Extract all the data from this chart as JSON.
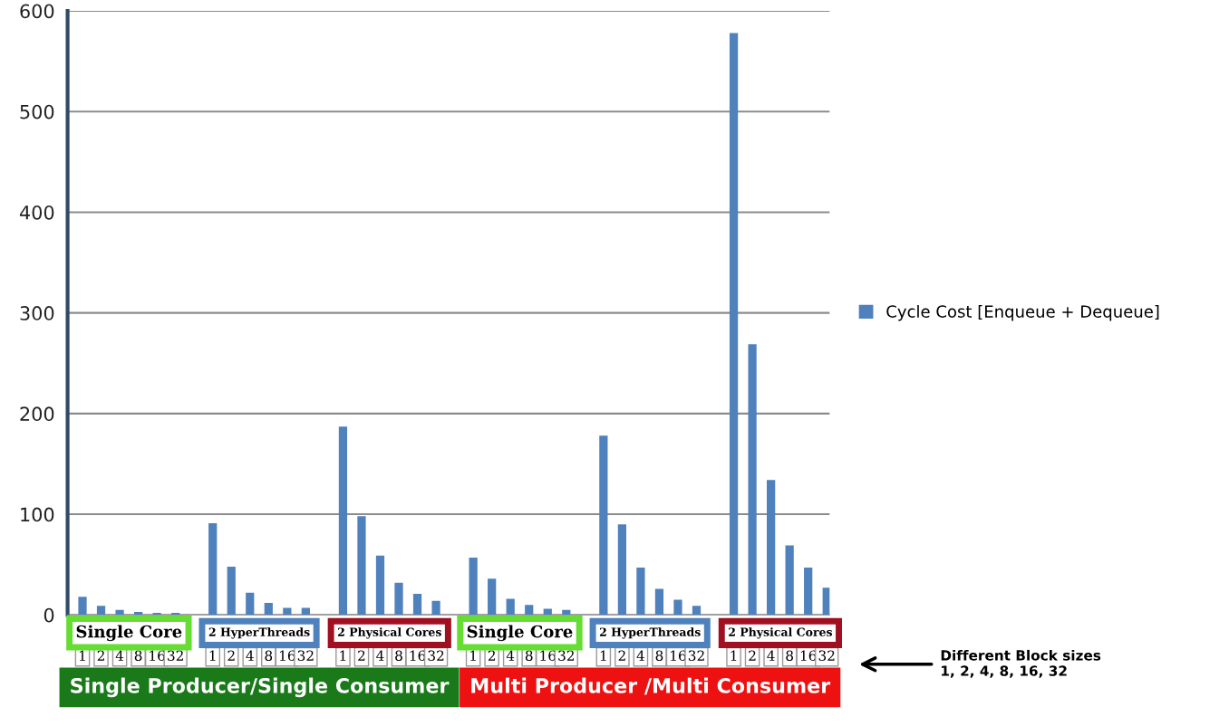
{
  "chart_data": {
    "type": "bar",
    "categories": [
      "1",
      "2",
      "4",
      "8",
      "16",
      "32",
      null,
      "1",
      "2",
      "4",
      "8",
      "16",
      "32",
      null,
      "1",
      "2",
      "4",
      "8",
      "16",
      "32",
      null,
      "1",
      "2",
      "4",
      "8",
      "16",
      "32",
      null,
      "1",
      "2",
      "4",
      "8",
      "16",
      "32",
      null,
      "1",
      "2",
      "4",
      "8",
      "16",
      "32"
    ],
    "series": [
      {
        "name": "Cycle Cost [Enqueue + Dequeue]",
        "color": "#4f81bd",
        "values": [
          18,
          9,
          5,
          3,
          2,
          2,
          null,
          91,
          48,
          22,
          12,
          7,
          7,
          null,
          187,
          98,
          59,
          32,
          21,
          14,
          null,
          57,
          36,
          16,
          10,
          6,
          5,
          null,
          178,
          90,
          47,
          26,
          15,
          9,
          null,
          578,
          269,
          134,
          69,
          47,
          27
        ]
      }
    ],
    "ylim": [
      0,
      600
    ],
    "yticks": [
      0,
      100,
      200,
      300,
      400,
      500,
      600
    ],
    "grid": "y",
    "legend": "right",
    "annotations": [
      "Single Core",
      "2 HyperThreads",
      "2 Physical Cores",
      "Single Core",
      "2 HyperThreads",
      "2 Physical Cores",
      "Single Producer/Single Consumer",
      "Multi Producer /Multi Consumer",
      "Different Block sizes\n1, 2, 4, 8, 16, 32"
    ]
  }
}
